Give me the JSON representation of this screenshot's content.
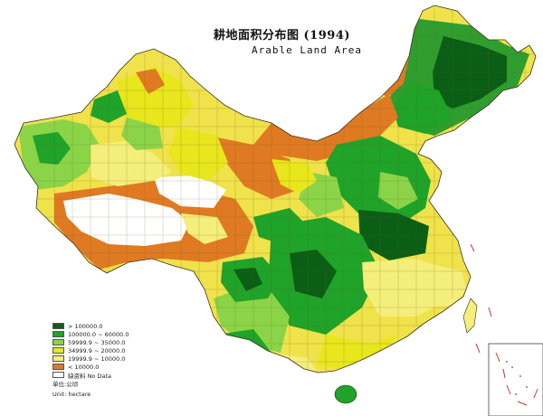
{
  "title": "耕地面积分布图 (1994)",
  "subtitle": "Arable Land Area",
  "legend": {
    "classes": [
      {
        "label": "> 100000.0",
        "color": "#0b5e15"
      },
      {
        "label": "100000.0 ~ 60000.0",
        "color": "#1fa329"
      },
      {
        "label": "59999.9 ~ 35000.0",
        "color": "#8bd448"
      },
      {
        "label": "34999.9 ~ 20000.0",
        "color": "#e8e61c"
      },
      {
        "label": "19999.9 ~ 10000.0",
        "color": "#f4ee7a"
      },
      {
        "label": "< 10000.0",
        "color": "#e07a22"
      },
      {
        "label": "缺资料 No Data",
        "color": "#ffffff"
      }
    ],
    "unit_cn": "单位:公顷",
    "unit_en": "Unit: hectare"
  }
}
